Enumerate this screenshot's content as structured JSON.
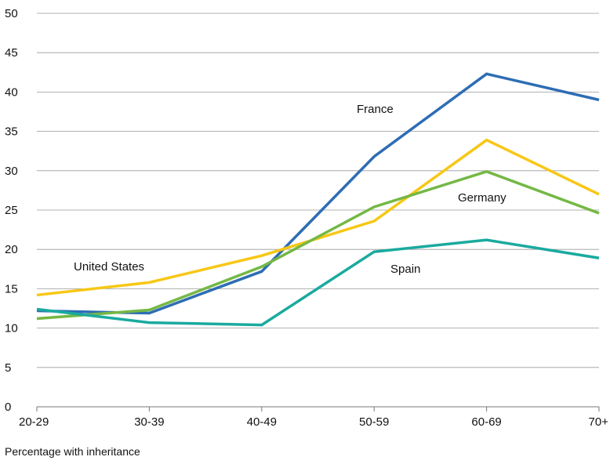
{
  "chart_data": {
    "type": "line",
    "categories": [
      "20-29",
      "30-39",
      "40-49",
      "50-59",
      "60-69",
      "70+"
    ],
    "ylim": [
      0,
      50
    ],
    "yticks": [
      0,
      5,
      10,
      15,
      20,
      25,
      30,
      35,
      40,
      45,
      50
    ],
    "grid": true,
    "legend": "inline labels",
    "caption": "Percentage with inheritance",
    "series": [
      {
        "name": "France",
        "color": "#2e6db4",
        "values": [
          12.2,
          11.9,
          17.2,
          31.8,
          42.3,
          39.0
        ]
      },
      {
        "name": "United States",
        "color": "#f7c715",
        "values": [
          14.2,
          15.8,
          19.2,
          23.6,
          33.9,
          27.0
        ]
      },
      {
        "name": "Germany",
        "color": "#74b845",
        "values": [
          11.2,
          12.3,
          17.8,
          25.4,
          29.9,
          24.6
        ]
      },
      {
        "name": "Spain",
        "color": "#1aaa9f",
        "values": [
          12.4,
          10.7,
          10.4,
          19.7,
          21.2,
          18.9
        ]
      }
    ]
  }
}
